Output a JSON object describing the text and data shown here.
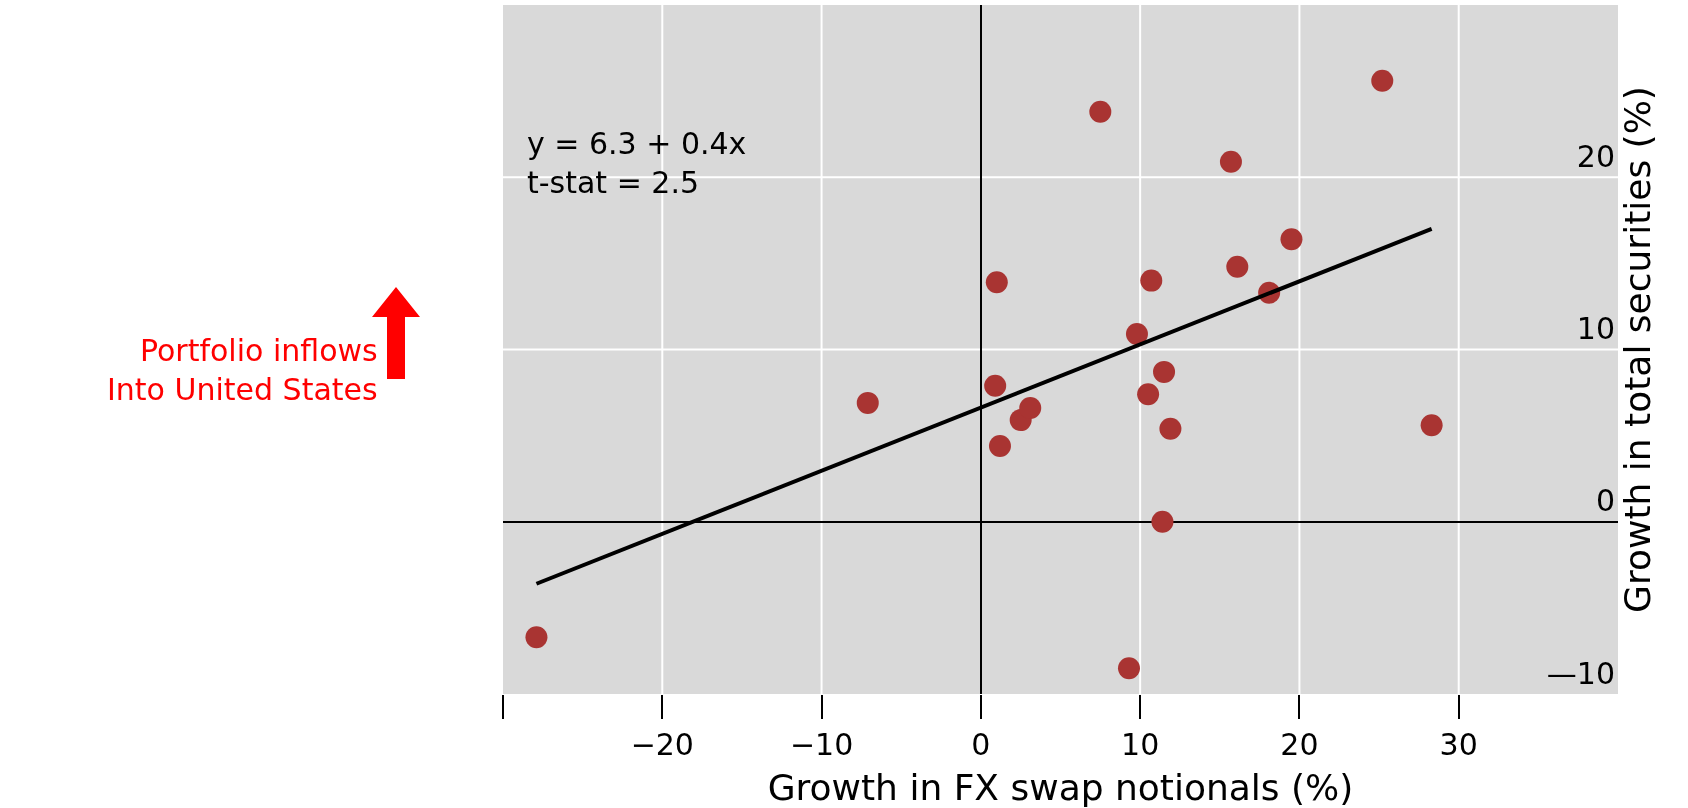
{
  "chart_data": {
    "type": "scatter",
    "xlabel": "Growth in FX swap notionals (%)",
    "ylabel": "Growth in total securities (%)",
    "annotations": [
      "y = 6.3 + 0.4x\nt-stat = 2.5",
      "Portfolio inflows\nInto United States"
    ],
    "series": [
      {
        "color": "#a93432",
        "marker": "circle",
        "x": [
          -27.9,
          -7.1,
          0.9,
          1.0,
          1.2,
          2.5,
          3.1,
          7.5,
          9.3,
          9.8,
          10.5,
          10.7,
          11.4,
          11.5,
          11.9,
          15.7,
          16.1,
          18.1,
          19.5,
          25.2,
          28.3
        ],
        "values": [
          -6.7,
          6.9,
          7.9,
          13.9,
          4.4,
          5.9,
          6.6,
          23.8,
          -8.5,
          10.9,
          7.4,
          14.0,
          0.0,
          8.7,
          5.4,
          20.9,
          14.8,
          13.3,
          16.4,
          25.6,
          5.6
        ]
      },
      {
        "type": "line",
        "color": "#000000",
        "marker": "none",
        "x": [
          -27.9,
          28.3
        ],
        "values": [
          -3.6,
          17.0
        ]
      }
    ],
    "xlim": [
      -30,
      40
    ],
    "xticks": [
      {
        "value": -30,
        "label": null
      },
      -20,
      -10,
      0,
      10,
      20,
      30,
      {
        "value": 40,
        "label": null
      }
    ],
    "ylim": [
      -10,
      30
    ],
    "yticks": [
      {
        "value": -10,
        "label": "—10"
      },
      0,
      10,
      20
    ],
    "grid": true
  }
}
